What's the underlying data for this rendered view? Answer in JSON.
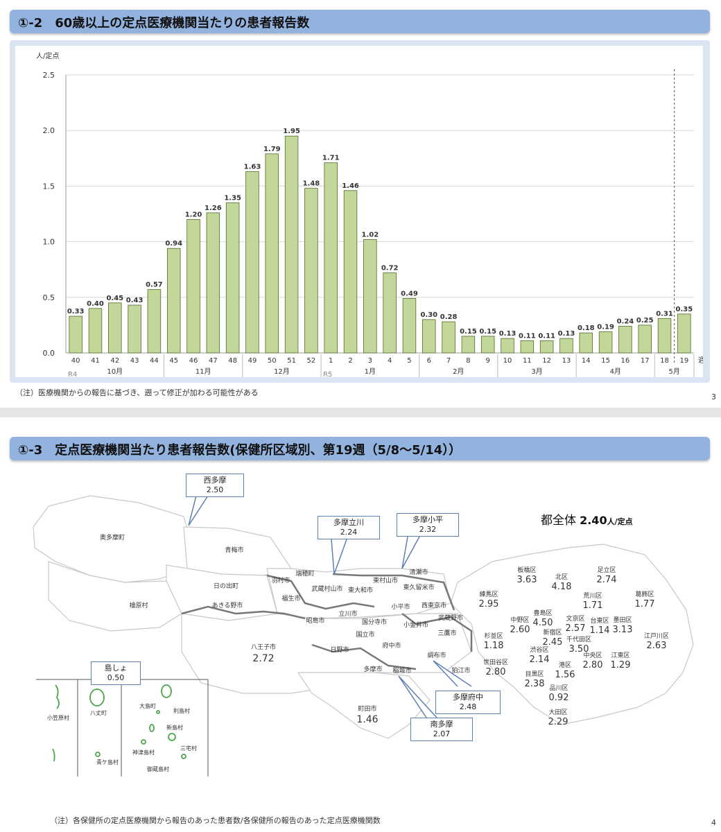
{
  "section1": {
    "title": "①-2　60歳以上の定点医療機関当たりの患者報告数",
    "note": "（注）医療機関からの報告に基づき、遡って修正が加わる可能性がある",
    "page": "3"
  },
  "chart_data": {
    "type": "bar",
    "ylabel": "人/定点",
    "xlabel": "週",
    "ylim": [
      0,
      2.5
    ],
    "yticks": [
      "0.0",
      "0.5",
      "1.0",
      "1.5",
      "2.0",
      "2.5"
    ],
    "grid": true,
    "bar_color": "#c4d79b",
    "categories": [
      "40",
      "41",
      "42",
      "43",
      "44",
      "45",
      "46",
      "47",
      "48",
      "49",
      "50",
      "51",
      "52",
      "1",
      "2",
      "3",
      "4",
      "5",
      "6",
      "7",
      "8",
      "9",
      "10",
      "11",
      "12",
      "13",
      "14",
      "15",
      "16",
      "17",
      "18",
      "19"
    ],
    "values": [
      0.33,
      0.4,
      0.45,
      0.43,
      0.57,
      0.94,
      1.2,
      1.26,
      1.35,
      1.63,
      1.79,
      1.95,
      1.48,
      1.71,
      1.46,
      1.02,
      0.72,
      0.49,
      0.3,
      0.28,
      0.15,
      0.15,
      0.13,
      0.11,
      0.11,
      0.13,
      0.18,
      0.19,
      0.24,
      0.25,
      0.31,
      0.35
    ],
    "labels": [
      "0.33",
      "0.40",
      "0.45",
      "0.43",
      "0.57",
      "0.94",
      "1.20",
      "1.26",
      "1.35",
      "1.63",
      "1.79",
      "1.95",
      "1.48",
      "1.71",
      "1.46",
      "1.02",
      "0.72",
      "0.49",
      "0.30",
      "0.28",
      "0.15",
      "0.15",
      "0.13",
      "0.11",
      "0.11",
      "0.13",
      "0.18",
      "0.19",
      "0.24",
      "0.25",
      "0.31",
      "0.35"
    ],
    "months": [
      {
        "label": "10月",
        "start": 0,
        "end": 5
      },
      {
        "label": "11月",
        "start": 5,
        "end": 9
      },
      {
        "label": "12月",
        "start": 9,
        "end": 13
      },
      {
        "label": "1月",
        "start": 13,
        "end": 18
      },
      {
        "label": "2月",
        "start": 18,
        "end": 22
      },
      {
        "label": "3月",
        "start": 22,
        "end": 26
      },
      {
        "label": "4月",
        "start": 26,
        "end": 30
      },
      {
        "label": "5月",
        "start": 30,
        "end": 32
      }
    ],
    "eras": [
      {
        "label": "R4",
        "index": 0
      },
      {
        "label": "R5",
        "index": 13
      }
    ],
    "dashed_line_before_index": 31
  },
  "section2": {
    "title": "①-3　定点医療機関当たり患者報告数(保健所区域別、第19週（5/8～5/14））",
    "total_label": "都全体",
    "total_value": "2.40",
    "total_unit": "人/定点",
    "note": "（注）各保健所の定点医療機関から報告のあった患者数/各保健所の報告のあった定点医療機関数",
    "page": "4"
  },
  "map": {
    "callouts": [
      {
        "name": "西多摩",
        "value": "2.50"
      },
      {
        "name": "多摩立川",
        "value": "2.24"
      },
      {
        "name": "多摩小平",
        "value": "2.32"
      },
      {
        "name": "島しょ",
        "value": "0.50"
      },
      {
        "name": "多摩府中",
        "value": "2.48"
      },
      {
        "name": "南多摩",
        "value": "2.07"
      }
    ],
    "municipalities": [
      "奥多摩町",
      "青梅市",
      "日の出町",
      "檜原村",
      "あきる野市",
      "羽村市",
      "瑞穂町",
      "福生市",
      "武蔵村山市",
      "東大和市",
      "東村山市",
      "清瀬市",
      "東久留米市",
      "西東京市",
      "小平市",
      "立川市",
      "昭島市",
      "国分寺市",
      "国立市",
      "小金井市",
      "武蔵野市",
      "三鷹市",
      "八王子市",
      "日野市",
      "府中市",
      "調布市",
      "狛江市",
      "多摩市",
      "稲城市",
      "町田市"
    ],
    "values_only": [
      {
        "name": "八王子市",
        "value": "2.72"
      },
      {
        "name": "町田市",
        "value": "1.46"
      }
    ],
    "wards": [
      {
        "name": "板橋区",
        "value": "3.63"
      },
      {
        "name": "北区",
        "value": "4.18"
      },
      {
        "name": "足立区",
        "value": "2.74"
      },
      {
        "name": "練馬区",
        "value": "2.95"
      },
      {
        "name": "荒川区",
        "value": "1.71"
      },
      {
        "name": "葛飾区",
        "value": "1.77"
      },
      {
        "name": "豊島区",
        "value": "4.50"
      },
      {
        "name": "中野区",
        "value": "2.60"
      },
      {
        "name": "文京区",
        "value": "2.57"
      },
      {
        "name": "台東区",
        "value": "1.14"
      },
      {
        "name": "墨田区",
        "value": "3.13"
      },
      {
        "name": "新宿区",
        "value": "2.45"
      },
      {
        "name": "杉並区",
        "value": "1.18"
      },
      {
        "name": "千代田区",
        "value": "3.50"
      },
      {
        "name": "江戸川区",
        "value": "2.63"
      },
      {
        "name": "渋谷区",
        "value": "2.14"
      },
      {
        "name": "中央区",
        "value": "2.80"
      },
      {
        "name": "江東区",
        "value": "1.29"
      },
      {
        "name": "港区",
        "value": "1.56"
      },
      {
        "name": "世田谷区",
        "value": "2.80"
      },
      {
        "name": "目黒区",
        "value": "2.38"
      },
      {
        "name": "品川区",
        "value": "0.92"
      },
      {
        "name": "大田区",
        "value": "2.29"
      }
    ],
    "islands": [
      "小笠原村",
      "八丈町",
      "大島町",
      "利島村",
      "新島村",
      "神津島村",
      "三宅村",
      "青ケ島村",
      "御蔵島村"
    ]
  }
}
